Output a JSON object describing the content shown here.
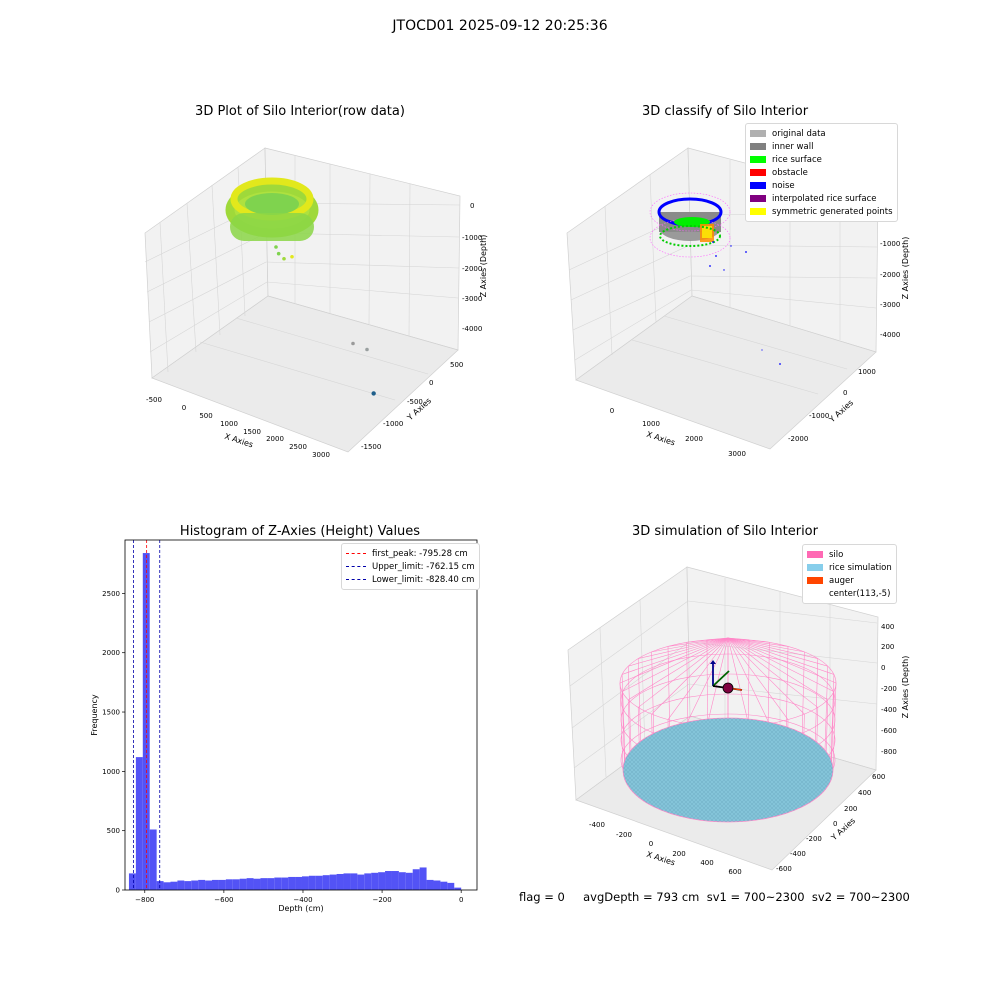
{
  "suptitle": "JTOCD01 2025-09-12 20:25:36",
  "footer": "flag = 0     avgDepth = 793 cm  sv1 = 700~2300  sv2 = 700~2300",
  "chart_data": [
    {
      "type": "scatter3d",
      "title": "3D Plot of Silo Interior(row data)",
      "xlabel": "X Axies",
      "ylabel": "Y Axies",
      "zlabel": "Z Axies (Depth)",
      "xticks": [
        "-500",
        "0",
        "500",
        "1000",
        "1500",
        "2000",
        "2500",
        "3000"
      ],
      "yticks": [
        "500",
        "0",
        "-500",
        "-1000",
        "-1500"
      ],
      "zticks": [
        "0",
        "-1000",
        "-2000",
        "-3000",
        "-4000"
      ],
      "ring_points": "dense ring of green-yellow points near z≈-800",
      "outliers": [
        {
          "x": 300,
          "y": 0,
          "z": -1400
        },
        {
          "x": 400,
          "y": 0,
          "z": -1600
        },
        {
          "x": 600,
          "y": 0,
          "z": -1700
        },
        {
          "x": 900,
          "y": 0,
          "z": -1500
        },
        {
          "x": 2400,
          "y": -700,
          "z": -3000
        },
        {
          "x": 2700,
          "y": -900,
          "z": -2800
        },
        {
          "x": 2500,
          "y": -1300,
          "z": -3900
        }
      ]
    },
    {
      "type": "scatter3d",
      "title": "3D classify of Silo Interior",
      "xlabel": "X Axies",
      "ylabel": "Y Axies",
      "zlabel": "Z Axies (Depth)",
      "xticks": [
        "0",
        "1000",
        "2000",
        "3000"
      ],
      "yticks": [
        "1000",
        "0",
        "-1000",
        "-2000"
      ],
      "zticks": [
        "0",
        "-1000",
        "-2000",
        "-3000",
        "-4000"
      ],
      "legend": [
        {
          "name": "original data",
          "color": "#b0b0b0"
        },
        {
          "name": "inner wall",
          "color": "#808080"
        },
        {
          "name": "rice surface",
          "color": "#00ff00"
        },
        {
          "name": "obstacle",
          "color": "#ff0000"
        },
        {
          "name": "noise",
          "color": "#0000ff"
        },
        {
          "name": "interpolated rice surface",
          "color": "#800080"
        },
        {
          "name": "symmetric generated points",
          "color": "#ffff00"
        }
      ]
    },
    {
      "type": "bar",
      "title": "Histogram of Z-Axies (Height) Values",
      "xlabel": "Depth (cm)",
      "ylabel": "Frequency",
      "xlim": [
        -850,
        40
      ],
      "ylim": [
        0,
        2950
      ],
      "xticks": [
        -800,
        -600,
        -400,
        -200,
        0
      ],
      "yticks": [
        0,
        500,
        1000,
        1500,
        2000,
        2500
      ],
      "bin_width": 17.5,
      "bins_start": [
        -840,
        -822.5,
        -805,
        -787.5,
        -770,
        -752.5,
        -735,
        -717.5,
        -700,
        -682.5,
        -665,
        -647.5,
        -630,
        -612.5,
        -595,
        -577.5,
        -560,
        -542.5,
        -525,
        -507.5,
        -490,
        -472.5,
        -455,
        -437.5,
        -420,
        -402.5,
        -385,
        -367.5,
        -350,
        -332.5,
        -315,
        -297.5,
        -280,
        -262.5,
        -245,
        -227.5,
        -210,
        -192.5,
        -175,
        -157.5,
        -140,
        -122.5,
        -105,
        -87.5,
        -70,
        -52.5,
        -35,
        -17.5
      ],
      "values": [
        140,
        1120,
        2840,
        510,
        75,
        65,
        70,
        80,
        75,
        80,
        85,
        80,
        85,
        85,
        90,
        90,
        95,
        100,
        95,
        100,
        100,
        105,
        105,
        110,
        110,
        115,
        120,
        120,
        125,
        130,
        135,
        140,
        140,
        130,
        140,
        145,
        150,
        160,
        160,
        150,
        145,
        175,
        190,
        85,
        80,
        70,
        60,
        20
      ],
      "bar_color": "#4a4af5",
      "vlines": [
        {
          "name": "first_peak: -795.28 cm",
          "x": -795.28,
          "color": "#ff0000"
        },
        {
          "name": "Upper_limit: -762.15 cm",
          "x": -762.15,
          "color": "#0000aa"
        },
        {
          "name": "Lower_limit: -828.40 cm",
          "x": -828.4,
          "color": "#0000aa"
        }
      ],
      "legend_position": "upper right"
    },
    {
      "type": "surface3d",
      "title": "3D simulation of Silo Interior",
      "xlabel": "X Axies",
      "ylabel": "Y Axies",
      "zlabel": "Z Axies (Depth)",
      "xticks": [
        "-400",
        "-200",
        "0",
        "200",
        "400",
        "600"
      ],
      "yticks": [
        "600",
        "400",
        "200",
        "0",
        "-200",
        "-400",
        "-600"
      ],
      "zticks": [
        "400",
        "200",
        "0",
        "-200",
        "-400",
        "-600",
        "-800"
      ],
      "legend": [
        {
          "name": "silo",
          "color": "#ff69b4"
        },
        {
          "name": "rice simulation",
          "color": "#87ceeb"
        },
        {
          "name": "auger",
          "color": "#ff4500"
        },
        {
          "name": "center(113,-5)",
          "color": "#ffffff"
        }
      ]
    }
  ]
}
